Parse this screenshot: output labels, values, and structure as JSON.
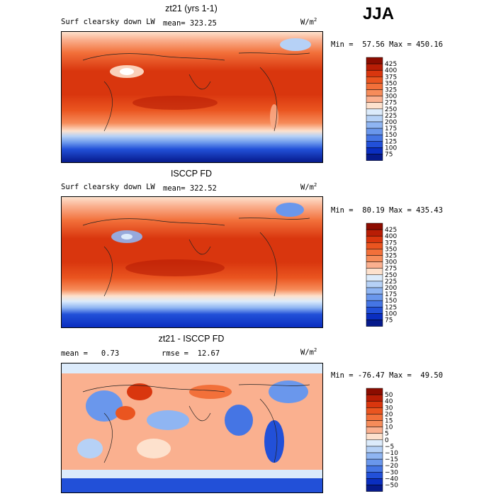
{
  "season": "JJA",
  "panels": [
    {
      "title": "zt21 (yrs 1-1)",
      "left_label": "Surf clearsky down LW",
      "stat1": "mean= 323.25",
      "stat2": "",
      "units": "W/m",
      "units_sup": "2",
      "minmax": "Min =  57.56 Max = 450.16"
    },
    {
      "title": "ISCCP FD",
      "left_label": "Surf clearsky down LW",
      "stat1": "mean= 322.52",
      "stat2": "",
      "units": "W/m",
      "units_sup": "2",
      "minmax": "Min =  80.19 Max = 435.43"
    },
    {
      "title": "zt21 - ISCCP FD",
      "left_label": "",
      "stat1": "mean =   0.73",
      "stat2": "rmse =  12.67",
      "units": "W/m",
      "units_sup": "2",
      "minmax": "Min = -76.47 Max =  49.50"
    }
  ],
  "chart_data": [
    {
      "type": "heatmap",
      "title": "zt21 (yrs 1-1)",
      "variable": "Surf clearsky down LW",
      "units": "W/m2",
      "mean": 323.25,
      "min": 57.56,
      "max": 450.16,
      "colorbar_levels": [
        "425",
        "400",
        "375",
        "350",
        "325",
        "300",
        "275",
        "250",
        "225",
        "200",
        "175",
        "150",
        "125",
        "100",
        "75"
      ],
      "colorbar_colors": [
        "#8c0c00",
        "#b81d05",
        "#d9360e",
        "#ea5520",
        "#f2703a",
        "#f68c5a",
        "#fab08f",
        "#fde1cd",
        "#dcebfb",
        "#b6d1f6",
        "#8fb5f2",
        "#6a97ec",
        "#4575e4",
        "#2250d8",
        "#0a2ec0",
        "#061a8c"
      ]
    },
    {
      "type": "heatmap",
      "title": "ISCCP FD",
      "variable": "Surf clearsky down LW",
      "units": "W/m2",
      "mean": 322.52,
      "min": 80.19,
      "max": 435.43,
      "colorbar_levels": [
        "425",
        "400",
        "375",
        "350",
        "325",
        "300",
        "275",
        "250",
        "225",
        "200",
        "175",
        "150",
        "125",
        "100",
        "75"
      ],
      "colorbar_colors": [
        "#8c0c00",
        "#b81d05",
        "#d9360e",
        "#ea5520",
        "#f2703a",
        "#f68c5a",
        "#fab08f",
        "#fde1cd",
        "#dcebfb",
        "#b6d1f6",
        "#8fb5f2",
        "#6a97ec",
        "#4575e4",
        "#2250d8",
        "#0a2ec0",
        "#061a8c"
      ]
    },
    {
      "type": "heatmap",
      "title": "zt21 - ISCCP FD",
      "units": "W/m2",
      "mean": 0.73,
      "rmse": 12.67,
      "min": -76.47,
      "max": 49.5,
      "colorbar_levels": [
        "50",
        "40",
        "30",
        "20",
        "15",
        "10",
        "5",
        "0",
        "−5",
        "−10",
        "−15",
        "−20",
        "−30",
        "−40",
        "−50"
      ],
      "colorbar_colors": [
        "#8c0c00",
        "#b81d05",
        "#d9360e",
        "#ea5520",
        "#f2703a",
        "#f68c5a",
        "#fab08f",
        "#fde1cd",
        "#dcebfb",
        "#b6d1f6",
        "#8fb5f2",
        "#6a97ec",
        "#4575e4",
        "#2250d8",
        "#0a2ec0",
        "#061a8c"
      ]
    }
  ]
}
